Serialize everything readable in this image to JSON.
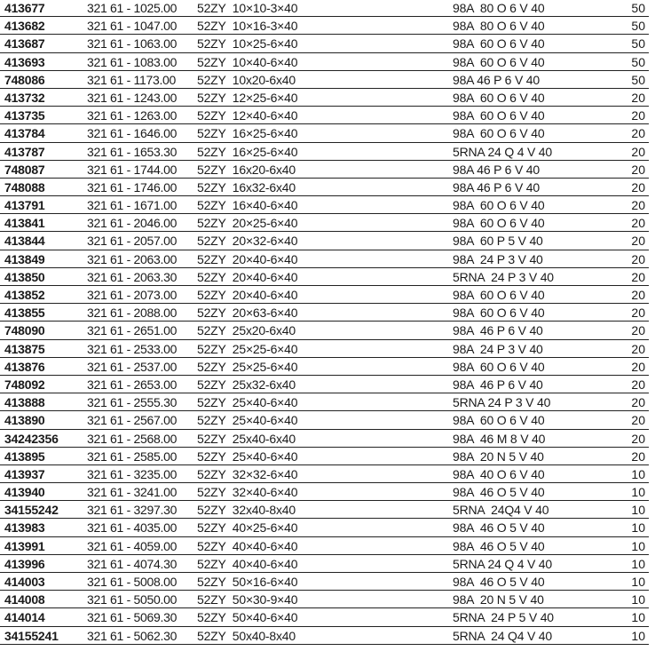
{
  "rows": [
    [
      "413677",
      "321 61 - 1025.00",
      "52ZY  10×10-3×40",
      "98A  80 O 6 V 40",
      "50"
    ],
    [
      "413682",
      "321 61 - 1047.00",
      "52ZY  10×16-3×40",
      "98A  80 O 6 V 40",
      "50"
    ],
    [
      "413687",
      "321 61 - 1063.00",
      "52ZY  10×25-6×40",
      "98A  60 O 6 V 40",
      "50"
    ],
    [
      "413693",
      "321 61 - 1083.00",
      "52ZY  10×40-6×40",
      "98A  60 O 6 V 40",
      "50"
    ],
    [
      "748086",
      "321 61 - 1173.00",
      "52ZY  10x20-6x40",
      "98A 46 P 6 V 40",
      "50"
    ],
    [
      "413732",
      "321 61 - 1243.00",
      "52ZY  12×25-6×40",
      "98A  60 O 6 V 40",
      "20"
    ],
    [
      "413735",
      "321 61 - 1263.00",
      "52ZY  12×40-6×40",
      "98A  60 O 6 V 40",
      "20"
    ],
    [
      "413784",
      "321 61 - 1646.00",
      "52ZY  16×25-6×40",
      "98A  60 O 6 V 40",
      "20"
    ],
    [
      "413787",
      "321 61 - 1653.30",
      "52ZY  16×25-6×40",
      "5RNA 24 Q 4 V 40",
      "20"
    ],
    [
      "748087",
      "321 61 - 1744.00",
      "52ZY  16x20-6x40",
      "98A 46 P 6 V 40",
      "20"
    ],
    [
      "748088",
      "321 61 - 1746.00",
      "52ZY  16x32-6x40",
      "98A 46 P 6 V 40",
      "20"
    ],
    [
      "413791",
      "321 61 - 1671.00",
      "52ZY  16×40-6×40",
      "98A  60 O 6 V 40",
      "20"
    ],
    [
      "413841",
      "321 61 - 2046.00",
      "52ZY  20×25-6×40",
      "98A  60 O 6 V 40",
      "20"
    ],
    [
      "413844",
      "321 61 - 2057.00",
      "52ZY  20×32-6×40",
      "98A  60 P 5 V 40",
      "20"
    ],
    [
      "413849",
      "321 61 - 2063.00",
      "52ZY  20×40-6×40",
      "98A  24 P 3 V 40",
      "20"
    ],
    [
      "413850",
      "321 61 - 2063.30",
      "52ZY  20×40-6×40",
      "5RNA  24 P 3 V 40",
      "20"
    ],
    [
      "413852",
      "321 61 - 2073.00",
      "52ZY  20×40-6×40",
      "98A  60 O 6 V 40",
      "20"
    ],
    [
      "413855",
      "321 61 - 2088.00",
      "52ZY  20×63-6×40",
      "98A  60 O 6 V 40",
      "20"
    ],
    [
      "748090",
      "321 61 - 2651.00",
      "52ZY  25x20-6x40",
      "98A  46 P 6 V 40",
      "20"
    ],
    [
      "413875",
      "321 61 - 2533.00",
      "52ZY  25×25-6×40",
      "98A  24 P 3 V 40",
      "20"
    ],
    [
      "413876",
      "321 61 - 2537.00",
      "52ZY  25×25-6×40",
      "98A  60 O 6 V 40",
      "20"
    ],
    [
      "748092",
      "321 61 - 2653.00",
      "52ZY  25x32-6x40",
      "98A  46 P 6 V 40",
      "20"
    ],
    [
      "413888",
      "321 61 - 2555.30",
      "52ZY  25×40-6×40",
      "5RNA 24 P 3 V 40",
      "20"
    ],
    [
      "413890",
      "321 61 - 2567.00",
      "52ZY  25×40-6×40",
      "98A  60 O 6 V 40",
      "20"
    ],
    [
      "34242356",
      "321 61 - 2568.00",
      "52ZY  25x40-6x40",
      "98A  46 M 8 V 40",
      "20"
    ],
    [
      "413895",
      "321 61 - 2585.00",
      "52ZY  25×40-6×40",
      "98A  20 N 5 V 40",
      "20"
    ],
    [
      "413937",
      "321 61 - 3235.00",
      "52ZY  32×32-6×40",
      "98A  40 O 6 V 40",
      "10"
    ],
    [
      "413940",
      "321 61 - 3241.00",
      "52ZY  32×40-6×40",
      "98A  46 O 5 V 40",
      "10"
    ],
    [
      "34155242",
      "321 61 - 3297.30",
      "52ZY  32x40-8x40",
      "5RNA  24Q4 V 40",
      "10"
    ],
    [
      "413983",
      "321 61 - 4035.00",
      "52ZY  40×25-6×40",
      "98A  46 O 5 V 40",
      "10"
    ],
    [
      "413991",
      "321 61 - 4059.00",
      "52ZY  40×40-6×40",
      "98A  46 O 5 V 40",
      "10"
    ],
    [
      "413996",
      "321 61 - 4074.30",
      "52ZY  40×40-6×40",
      "5RNA 24 Q 4 V 40",
      "10"
    ],
    [
      "414003",
      "321 61 - 5008.00",
      "52ZY  50×16-6×40",
      "98A  46 O 5 V 40",
      "10"
    ],
    [
      "414008",
      "321 61 - 5050.00",
      "52ZY  50×30-9×40",
      "98A  20 N 5 V 40",
      "10"
    ],
    [
      "414014",
      "321 61 - 5069.30",
      "52ZY  50×40-6×40",
      "5RNA  24 P 5 V 40",
      "10"
    ],
    [
      "34155241",
      "321 61 - 5062.30",
      "52ZY  50x40-8x40",
      "5RNA  24 Q4 V 40",
      "10"
    ]
  ]
}
